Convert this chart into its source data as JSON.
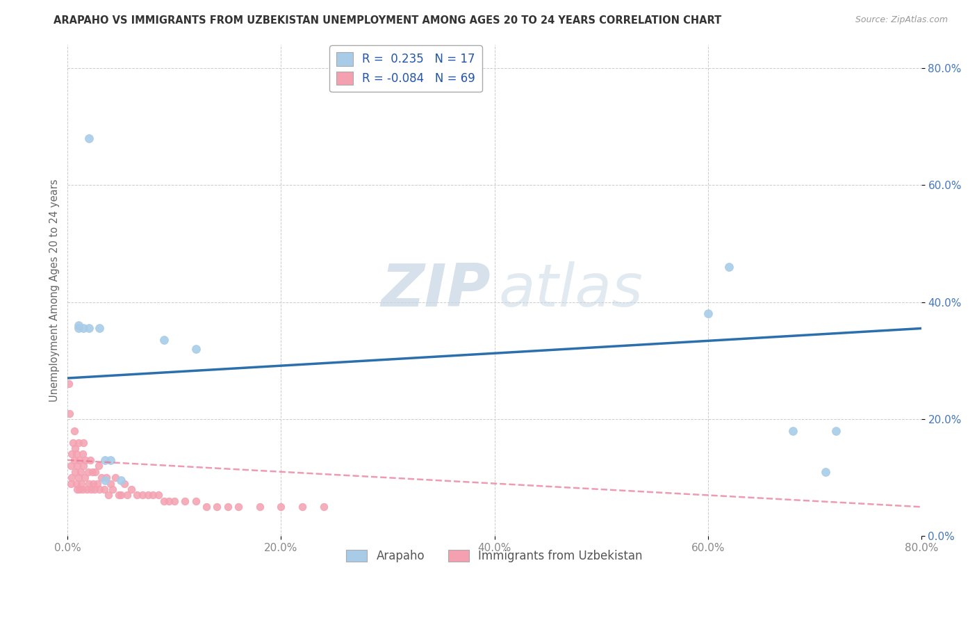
{
  "title": "ARAPAHO VS IMMIGRANTS FROM UZBEKISTAN UNEMPLOYMENT AMONG AGES 20 TO 24 YEARS CORRELATION CHART",
  "source": "Source: ZipAtlas.com",
  "ylabel": "Unemployment Among Ages 20 to 24 years",
  "legend_1_label": "Arapaho",
  "legend_2_label": "Immigrants from Uzbekistan",
  "R1_text": "R =  0.235",
  "N1_text": "N = 17",
  "R2_text": "R = -0.084",
  "N2_text": "N = 69",
  "color1": "#a8cce8",
  "color2": "#f4a0b0",
  "line1_color": "#2c6fad",
  "line2_color": "#e87090",
  "xlim": [
    0.0,
    0.8
  ],
  "ylim": [
    0.0,
    0.84
  ],
  "xticks": [
    0.0,
    0.2,
    0.4,
    0.6,
    0.8
  ],
  "yticks": [
    0.0,
    0.2,
    0.4,
    0.6,
    0.8
  ],
  "arapaho_x": [
    0.02,
    0.01,
    0.01,
    0.015,
    0.02,
    0.03,
    0.09,
    0.62,
    0.6,
    0.68,
    0.71,
    0.12,
    0.04,
    0.035,
    0.72,
    0.05,
    0.035
  ],
  "arapaho_y": [
    0.68,
    0.36,
    0.355,
    0.355,
    0.355,
    0.355,
    0.335,
    0.46,
    0.38,
    0.18,
    0.11,
    0.32,
    0.13,
    0.13,
    0.18,
    0.095,
    0.095
  ],
  "uzbek_x": [
    0.003,
    0.003,
    0.004,
    0.004,
    0.005,
    0.006,
    0.006,
    0.007,
    0.007,
    0.008,
    0.008,
    0.009,
    0.009,
    0.01,
    0.01,
    0.011,
    0.011,
    0.012,
    0.013,
    0.014,
    0.014,
    0.015,
    0.015,
    0.016,
    0.017,
    0.018,
    0.019,
    0.02,
    0.021,
    0.022,
    0.023,
    0.024,
    0.025,
    0.026,
    0.028,
    0.029,
    0.03,
    0.032,
    0.034,
    0.036,
    0.038,
    0.04,
    0.042,
    0.045,
    0.048,
    0.05,
    0.053,
    0.056,
    0.06,
    0.065,
    0.07,
    0.075,
    0.08,
    0.085,
    0.09,
    0.095,
    0.1,
    0.11,
    0.12,
    0.13,
    0.14,
    0.15,
    0.16,
    0.18,
    0.2,
    0.22,
    0.24,
    0.001,
    0.002
  ],
  "uzbek_y": [
    0.12,
    0.09,
    0.14,
    0.1,
    0.16,
    0.13,
    0.18,
    0.11,
    0.15,
    0.09,
    0.14,
    0.08,
    0.12,
    0.1,
    0.16,
    0.08,
    0.13,
    0.11,
    0.09,
    0.14,
    0.08,
    0.12,
    0.16,
    0.1,
    0.13,
    0.08,
    0.11,
    0.09,
    0.13,
    0.08,
    0.11,
    0.09,
    0.08,
    0.11,
    0.09,
    0.12,
    0.08,
    0.1,
    0.08,
    0.1,
    0.07,
    0.09,
    0.08,
    0.1,
    0.07,
    0.07,
    0.09,
    0.07,
    0.08,
    0.07,
    0.07,
    0.07,
    0.07,
    0.07,
    0.06,
    0.06,
    0.06,
    0.06,
    0.06,
    0.05,
    0.05,
    0.05,
    0.05,
    0.05,
    0.05,
    0.05,
    0.05,
    0.26,
    0.21
  ],
  "line1_x0": 0.0,
  "line1_y0": 0.27,
  "line1_x1": 0.8,
  "line1_y1": 0.355,
  "line2_x0": 0.0,
  "line2_y0": 0.13,
  "line2_x1": 0.8,
  "line2_y1": 0.05
}
